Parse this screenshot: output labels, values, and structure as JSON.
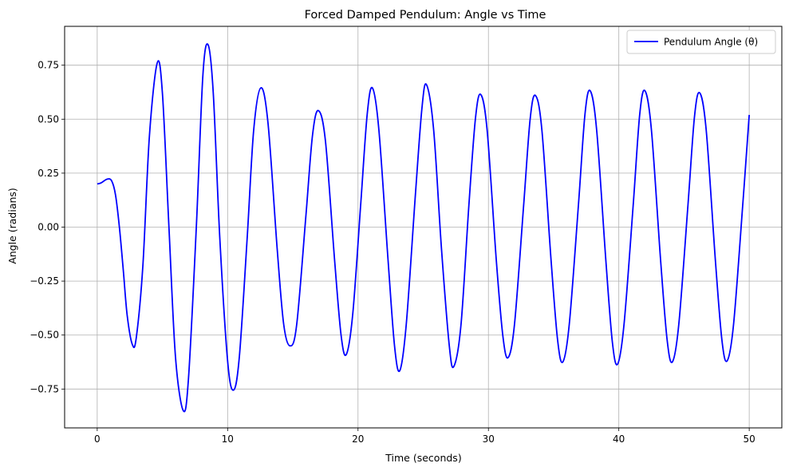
{
  "chart_data": {
    "type": "line",
    "title": "Forced Damped Pendulum: Angle vs Time",
    "xlabel": "Time (seconds)",
    "ylabel": "Angle (radians)",
    "xlim": [
      -2.5,
      52.5
    ],
    "ylim": [
      -0.93,
      0.93
    ],
    "xticks": [
      0,
      10,
      20,
      30,
      40,
      50
    ],
    "xtick_labels": [
      "0",
      "10",
      "20",
      "30",
      "40",
      "50"
    ],
    "yticks": [
      -0.75,
      -0.5,
      -0.25,
      0.0,
      0.25,
      0.5,
      0.75
    ],
    "ytick_labels": [
      "−0.75",
      "−0.50",
      "−0.25",
      "0.00",
      "0.25",
      "0.50",
      "0.75"
    ],
    "grid": true,
    "legend_position": "top-right",
    "line_color": "#0000ff",
    "series": [
      {
        "name": "Pendulum Angle (θ)",
        "color": "#0000ff",
        "points": [
          [
            0.0,
            0.2
          ],
          [
            0.3,
            0.205
          ],
          [
            0.75,
            0.222
          ],
          [
            1.1,
            0.215
          ],
          [
            1.4,
            0.15
          ],
          [
            1.7,
            0.0
          ],
          [
            2.0,
            -0.2
          ],
          [
            2.3,
            -0.41
          ],
          [
            2.7,
            -0.545
          ],
          [
            3.0,
            -0.51
          ],
          [
            3.5,
            -0.18
          ],
          [
            4.0,
            0.42
          ],
          [
            4.6,
            0.76
          ],
          [
            5.0,
            0.62
          ],
          [
            5.5,
            0.0
          ],
          [
            6.0,
            -0.6
          ],
          [
            6.6,
            -0.85
          ],
          [
            7.0,
            -0.7
          ],
          [
            7.6,
            0.0
          ],
          [
            8.1,
            0.7
          ],
          [
            8.5,
            0.845
          ],
          [
            8.9,
            0.62
          ],
          [
            9.4,
            -0.05
          ],
          [
            10.0,
            -0.62
          ],
          [
            10.45,
            -0.755
          ],
          [
            10.9,
            -0.6
          ],
          [
            11.5,
            -0.05
          ],
          [
            12.0,
            0.45
          ],
          [
            12.55,
            0.645
          ],
          [
            13.1,
            0.48
          ],
          [
            13.8,
            -0.1
          ],
          [
            14.3,
            -0.45
          ],
          [
            14.8,
            -0.55
          ],
          [
            15.3,
            -0.45
          ],
          [
            16.0,
            0.05
          ],
          [
            16.5,
            0.42
          ],
          [
            16.95,
            0.54
          ],
          [
            17.5,
            0.4
          ],
          [
            18.2,
            -0.15
          ],
          [
            18.7,
            -0.5
          ],
          [
            19.1,
            -0.59
          ],
          [
            19.6,
            -0.4
          ],
          [
            20.2,
            0.1
          ],
          [
            20.7,
            0.52
          ],
          [
            21.1,
            0.645
          ],
          [
            21.6,
            0.45
          ],
          [
            22.3,
            -0.15
          ],
          [
            22.8,
            -0.55
          ],
          [
            23.2,
            -0.665
          ],
          [
            23.7,
            -0.45
          ],
          [
            24.4,
            0.15
          ],
          [
            24.9,
            0.55
          ],
          [
            25.25,
            0.66
          ],
          [
            25.8,
            0.45
          ],
          [
            26.4,
            -0.1
          ],
          [
            27.0,
            -0.55
          ],
          [
            27.35,
            -0.645
          ],
          [
            27.9,
            -0.45
          ],
          [
            28.5,
            0.1
          ],
          [
            29.0,
            0.5
          ],
          [
            29.4,
            0.615
          ],
          [
            29.9,
            0.45
          ],
          [
            30.6,
            -0.15
          ],
          [
            31.1,
            -0.5
          ],
          [
            31.5,
            -0.605
          ],
          [
            32.0,
            -0.45
          ],
          [
            32.7,
            0.1
          ],
          [
            33.2,
            0.5
          ],
          [
            33.6,
            0.61
          ],
          [
            34.1,
            0.45
          ],
          [
            34.8,
            -0.15
          ],
          [
            35.3,
            -0.52
          ],
          [
            35.7,
            -0.625
          ],
          [
            36.2,
            -0.45
          ],
          [
            36.9,
            0.1
          ],
          [
            37.4,
            0.52
          ],
          [
            37.8,
            0.632
          ],
          [
            38.3,
            0.45
          ],
          [
            39.0,
            -0.15
          ],
          [
            39.5,
            -0.53
          ],
          [
            39.9,
            -0.635
          ],
          [
            40.4,
            -0.45
          ],
          [
            41.1,
            0.1
          ],
          [
            41.6,
            0.52
          ],
          [
            42.0,
            0.632
          ],
          [
            42.5,
            0.45
          ],
          [
            43.2,
            -0.15
          ],
          [
            43.7,
            -0.52
          ],
          [
            44.1,
            -0.625
          ],
          [
            44.6,
            -0.45
          ],
          [
            45.3,
            0.1
          ],
          [
            45.8,
            0.51
          ],
          [
            46.2,
            0.622
          ],
          [
            46.7,
            0.45
          ],
          [
            47.4,
            -0.15
          ],
          [
            47.9,
            -0.52
          ],
          [
            48.3,
            -0.62
          ],
          [
            48.8,
            -0.45
          ],
          [
            49.5,
            0.1
          ],
          [
            50.0,
            0.52
          ]
        ]
      }
    ]
  }
}
